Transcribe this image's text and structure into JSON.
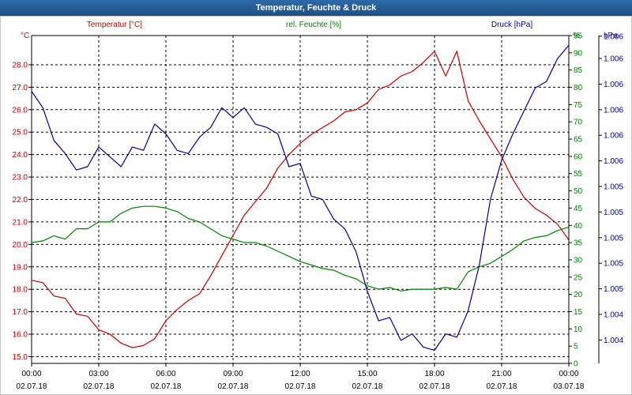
{
  "window": {
    "title": "Temperatur, Feuchte & Druck"
  },
  "chart_data": {
    "type": "line",
    "title": "Temperatur, Feuchte & Druck",
    "xlim": [
      0,
      24
    ],
    "x_ticks": [
      {
        "t": 0,
        "time": "00:00",
        "date": "02.07.18"
      },
      {
        "t": 3,
        "time": "03:00",
        "date": "02.07.18"
      },
      {
        "t": 6,
        "time": "06:00",
        "date": "02.07.18"
      },
      {
        "t": 9,
        "time": "09:00",
        "date": "02.07.18"
      },
      {
        "t": 12,
        "time": "12:00",
        "date": "02.07.18"
      },
      {
        "t": 15,
        "time": "15:00",
        "date": "02.07.18"
      },
      {
        "t": 18,
        "time": "18:00",
        "date": "02.07.18"
      },
      {
        "t": 21,
        "time": "21:00",
        "date": "02.07.18"
      },
      {
        "t": 24,
        "time": "00:00",
        "date": "03.07.18"
      }
    ],
    "axes": {
      "temperature": {
        "label": "Temperatur [°C]",
        "unit": "°C",
        "color": "#c00000",
        "min": 14.7,
        "max": 29.3,
        "ticks": [
          15.0,
          16.0,
          17.0,
          18.0,
          19.0,
          20.0,
          21.0,
          22.0,
          23.0,
          24.0,
          25.0,
          26.0,
          27.0,
          28.0
        ]
      },
      "humidity": {
        "label": "rel. Feuchte [%]",
        "unit": "%",
        "color": "#008000",
        "min": 0,
        "max": 95,
        "ticks": [
          0,
          5,
          10,
          15,
          20,
          25,
          30,
          35,
          40,
          45,
          50,
          55,
          60,
          65,
          70,
          75,
          80,
          85,
          90,
          95
        ]
      },
      "pressure": {
        "label": "Druck [hPa]",
        "unit": "hPa",
        "color": "#00008b",
        "tick_labels": [
          "1.004",
          "1.004",
          "1.005",
          "1.005",
          "1.005",
          "1.005",
          "1.005",
          "1.006",
          "1.006",
          "1.006",
          "1.006",
          "1.006",
          "1.006"
        ],
        "tick_fracs": [
          0.0714,
          0.1495,
          0.2275,
          0.3056,
          0.3836,
          0.4617,
          0.5397,
          0.6178,
          0.6958,
          0.7739,
          0.8519,
          0.93,
          0.9981
        ]
      }
    },
    "series": [
      {
        "name": "Temperatur [°C]",
        "axis": "temperature",
        "color": "#c00000",
        "points": [
          [
            0,
            18.4
          ],
          [
            0.5,
            18.3
          ],
          [
            1,
            17.7
          ],
          [
            1.5,
            17.6
          ],
          [
            2,
            16.9
          ],
          [
            2.5,
            16.8
          ],
          [
            3,
            16.2
          ],
          [
            3.5,
            16.0
          ],
          [
            4,
            15.6
          ],
          [
            4.5,
            15.4
          ],
          [
            5,
            15.5
          ],
          [
            5.5,
            15.8
          ],
          [
            6,
            16.6
          ],
          [
            6.5,
            17.1
          ],
          [
            7,
            17.5
          ],
          [
            7.5,
            17.8
          ],
          [
            8,
            18.6
          ],
          [
            8.5,
            19.5
          ],
          [
            9,
            20.4
          ],
          [
            9.5,
            21.3
          ],
          [
            10,
            21.9
          ],
          [
            10.5,
            22.5
          ],
          [
            11,
            23.4
          ],
          [
            11.5,
            24.0
          ],
          [
            12,
            24.5
          ],
          [
            12.5,
            24.9
          ],
          [
            13,
            25.2
          ],
          [
            13.5,
            25.5
          ],
          [
            14,
            25.9
          ],
          [
            14.5,
            26.0
          ],
          [
            15,
            26.3
          ],
          [
            15.5,
            26.9
          ],
          [
            16,
            27.1
          ],
          [
            16.5,
            27.5
          ],
          [
            17,
            27.7
          ],
          [
            17.5,
            28.1
          ],
          [
            18,
            28.6
          ],
          [
            18.5,
            27.5
          ],
          [
            19,
            28.6
          ],
          [
            19.5,
            26.4
          ],
          [
            20,
            25.5
          ],
          [
            20.5,
            24.7
          ],
          [
            21,
            23.9
          ],
          [
            21.5,
            22.9
          ],
          [
            22,
            22.1
          ],
          [
            22.5,
            21.6
          ],
          [
            23,
            21.3
          ],
          [
            23.5,
            20.9
          ],
          [
            24,
            20.2
          ]
        ]
      },
      {
        "name": "rel. Feuchte [%]",
        "axis": "humidity",
        "color": "#008000",
        "points": [
          [
            0,
            35
          ],
          [
            0.5,
            35.5
          ],
          [
            1,
            37
          ],
          [
            1.5,
            36
          ],
          [
            2,
            39
          ],
          [
            2.5,
            39
          ],
          [
            3,
            41
          ],
          [
            3.5,
            41
          ],
          [
            4,
            43.5
          ],
          [
            4.5,
            45
          ],
          [
            5,
            45.5
          ],
          [
            5.5,
            45.5
          ],
          [
            6,
            45
          ],
          [
            6.5,
            44
          ],
          [
            7,
            42
          ],
          [
            7.5,
            41
          ],
          [
            8,
            39
          ],
          [
            8.5,
            37
          ],
          [
            9,
            36
          ],
          [
            9.5,
            35
          ],
          [
            10,
            35
          ],
          [
            10.5,
            34
          ],
          [
            11,
            32.5
          ],
          [
            11.5,
            31
          ],
          [
            12,
            29.5
          ],
          [
            12.5,
            28.5
          ],
          [
            13,
            27.5
          ],
          [
            13.5,
            27
          ],
          [
            14,
            25.5
          ],
          [
            14.5,
            24.5
          ],
          [
            15,
            22.5
          ],
          [
            15.5,
            21.5
          ],
          [
            16,
            22
          ],
          [
            16.5,
            21
          ],
          [
            17,
            21.5
          ],
          [
            17.5,
            21.5
          ],
          [
            18,
            21.5
          ],
          [
            18.5,
            22
          ],
          [
            19,
            21.5
          ],
          [
            19.5,
            26.5
          ],
          [
            20,
            28
          ],
          [
            20.5,
            29
          ],
          [
            21,
            31
          ],
          [
            21.5,
            33
          ],
          [
            22,
            35.5
          ],
          [
            22.5,
            36.5
          ],
          [
            23,
            37
          ],
          [
            23.5,
            38.5
          ],
          [
            24,
            39.5
          ]
        ]
      },
      {
        "name": "Druck [hPa]",
        "axis": "pressure",
        "color": "#00008b",
        "points": [
          [
            0,
            0.83
          ],
          [
            0.5,
            0.78
          ],
          [
            1,
            0.68
          ],
          [
            1.5,
            0.64
          ],
          [
            2,
            0.59
          ],
          [
            2.5,
            0.6
          ],
          [
            3,
            0.66
          ],
          [
            3.5,
            0.63
          ],
          [
            4,
            0.6
          ],
          [
            4.5,
            0.66
          ],
          [
            5,
            0.65
          ],
          [
            5.5,
            0.73
          ],
          [
            6,
            0.7
          ],
          [
            6.5,
            0.65
          ],
          [
            7,
            0.64
          ],
          [
            7.5,
            0.69
          ],
          [
            8,
            0.72
          ],
          [
            8.5,
            0.78
          ],
          [
            9,
            0.75
          ],
          [
            9.5,
            0.78
          ],
          [
            10,
            0.73
          ],
          [
            10.5,
            0.72
          ],
          [
            11,
            0.7
          ],
          [
            11.5,
            0.6
          ],
          [
            12,
            0.61
          ],
          [
            12.5,
            0.51
          ],
          [
            13,
            0.5
          ],
          [
            13.5,
            0.44
          ],
          [
            14,
            0.41
          ],
          [
            14.5,
            0.34
          ],
          [
            15,
            0.22
          ],
          [
            15.5,
            0.13
          ],
          [
            16,
            0.14
          ],
          [
            16.5,
            0.07
          ],
          [
            17,
            0.09
          ],
          [
            17.5,
            0.05
          ],
          [
            18,
            0.04
          ],
          [
            18.5,
            0.09
          ],
          [
            19,
            0.08
          ],
          [
            19.5,
            0.16
          ],
          [
            20,
            0.3
          ],
          [
            20.5,
            0.5
          ],
          [
            21,
            0.62
          ],
          [
            21.5,
            0.7
          ],
          [
            22,
            0.77
          ],
          [
            22.5,
            0.84
          ],
          [
            23,
            0.86
          ],
          [
            23.5,
            0.93
          ],
          [
            24,
            0.97
          ]
        ]
      }
    ]
  }
}
